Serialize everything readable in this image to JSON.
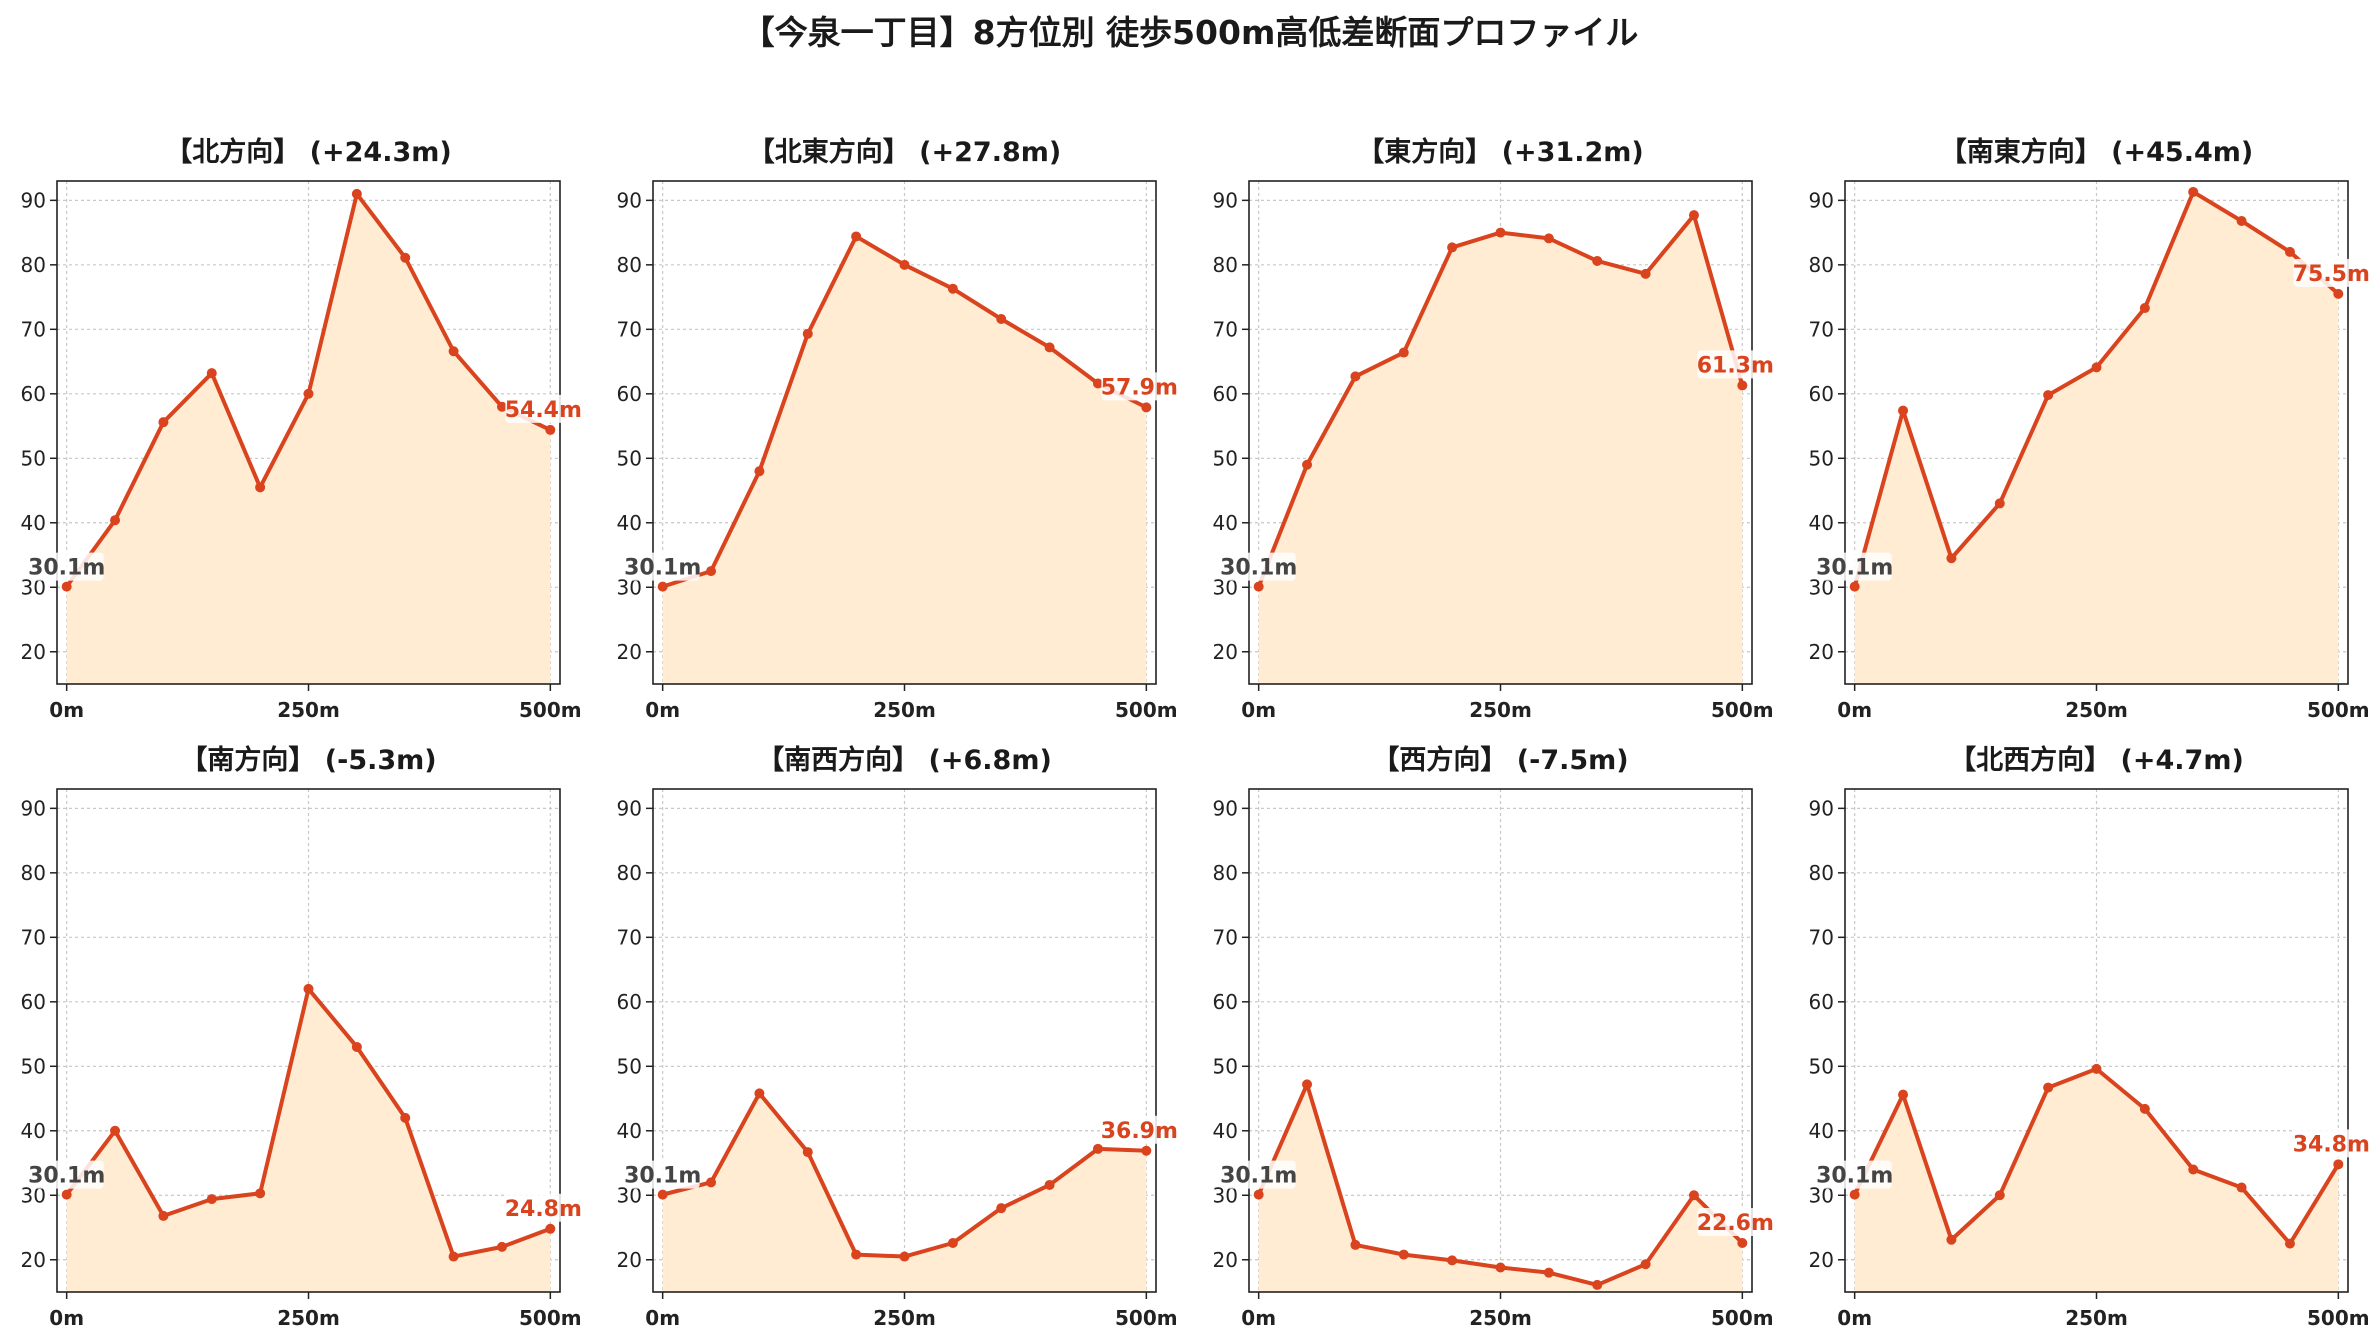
{
  "title": "【今泉一丁目】8方位別 徒歩500m高低差断面プロファイル",
  "colors": {
    "line": "#d9431e",
    "fill": "#ffecd2",
    "grid": "#c8c8c8",
    "axis": "#222222",
    "start_label": "#444444",
    "end_label": "#d9431e"
  },
  "chart_data": [
    {
      "type": "area",
      "title": "【北方向】 (+24.3m)",
      "x": [
        0,
        50,
        100,
        150,
        200,
        250,
        300,
        350,
        400,
        450,
        500
      ],
      "values": [
        30.1,
        40.4,
        55.6,
        63.2,
        45.5,
        60.0,
        91.0,
        81.1,
        66.6,
        58.0,
        54.4
      ],
      "start_label": "30.1m",
      "end_label": "54.4m",
      "x_ticks": [
        0,
        250,
        500
      ],
      "x_tick_labels": [
        "0m",
        "250m",
        "500m"
      ],
      "y_ticks": [
        20,
        30,
        40,
        50,
        60,
        70,
        80,
        90
      ],
      "xlim": [
        -10,
        510
      ],
      "ylim": [
        15,
        93
      ],
      "grid": true
    },
    {
      "type": "area",
      "title": "【北東方向】 (+27.8m)",
      "x": [
        0,
        50,
        100,
        150,
        200,
        250,
        300,
        350,
        400,
        450,
        500
      ],
      "values": [
        30.1,
        32.5,
        48.0,
        69.3,
        84.4,
        80.0,
        76.3,
        71.6,
        67.2,
        61.6,
        57.9
      ],
      "start_label": "30.1m",
      "end_label": "57.9m",
      "x_ticks": [
        0,
        250,
        500
      ],
      "x_tick_labels": [
        "0m",
        "250m",
        "500m"
      ],
      "y_ticks": [
        20,
        30,
        40,
        50,
        60,
        70,
        80,
        90
      ],
      "xlim": [
        -10,
        510
      ],
      "ylim": [
        15,
        93
      ],
      "grid": true
    },
    {
      "type": "area",
      "title": "【東方向】 (+31.2m)",
      "x": [
        0,
        50,
        100,
        150,
        200,
        250,
        300,
        350,
        400,
        450,
        500
      ],
      "values": [
        30.1,
        49.0,
        62.7,
        66.4,
        82.7,
        85.0,
        84.1,
        80.6,
        78.6,
        87.7,
        61.3
      ],
      "start_label": "30.1m",
      "end_label": "61.3m",
      "x_ticks": [
        0,
        250,
        500
      ],
      "x_tick_labels": [
        "0m",
        "250m",
        "500m"
      ],
      "y_ticks": [
        20,
        30,
        40,
        50,
        60,
        70,
        80,
        90
      ],
      "xlim": [
        -10,
        510
      ],
      "ylim": [
        15,
        93
      ],
      "grid": true
    },
    {
      "type": "area",
      "title": "【南東方向】 (+45.4m)",
      "x": [
        0,
        50,
        100,
        150,
        200,
        250,
        300,
        350,
        400,
        450,
        500
      ],
      "values": [
        30.1,
        57.4,
        34.5,
        43.0,
        59.8,
        64.1,
        73.3,
        91.3,
        86.8,
        82.0,
        75.5
      ],
      "start_label": "30.1m",
      "end_label": "75.5m",
      "x_ticks": [
        0,
        250,
        500
      ],
      "x_tick_labels": [
        "0m",
        "250m",
        "500m"
      ],
      "y_ticks": [
        20,
        30,
        40,
        50,
        60,
        70,
        80,
        90
      ],
      "xlim": [
        -10,
        510
      ],
      "ylim": [
        15,
        93
      ],
      "grid": true
    },
    {
      "type": "area",
      "title": "【南方向】 (-5.3m)",
      "x": [
        0,
        50,
        100,
        150,
        200,
        250,
        300,
        350,
        400,
        450,
        500
      ],
      "values": [
        30.1,
        40.0,
        26.8,
        29.4,
        30.3,
        62.0,
        53.0,
        42.0,
        20.5,
        22.0,
        24.8
      ],
      "start_label": "30.1m",
      "end_label": "24.8m",
      "x_ticks": [
        0,
        250,
        500
      ],
      "x_tick_labels": [
        "0m",
        "250m",
        "500m"
      ],
      "y_ticks": [
        20,
        30,
        40,
        50,
        60,
        70,
        80,
        90
      ],
      "xlim": [
        -10,
        510
      ],
      "ylim": [
        15,
        93
      ],
      "grid": true
    },
    {
      "type": "area",
      "title": "【南西方向】 (+6.8m)",
      "x": [
        0,
        50,
        100,
        150,
        200,
        250,
        300,
        350,
        400,
        450,
        500
      ],
      "values": [
        30.1,
        32.0,
        45.8,
        36.7,
        20.8,
        20.5,
        22.6,
        28.0,
        31.6,
        37.2,
        36.9
      ],
      "start_label": "30.1m",
      "end_label": "36.9m",
      "x_ticks": [
        0,
        250,
        500
      ],
      "x_tick_labels": [
        "0m",
        "250m",
        "500m"
      ],
      "y_ticks": [
        20,
        30,
        40,
        50,
        60,
        70,
        80,
        90
      ],
      "xlim": [
        -10,
        510
      ],
      "ylim": [
        15,
        93
      ],
      "grid": true
    },
    {
      "type": "area",
      "title": "【西方向】 (-7.5m)",
      "x": [
        0,
        50,
        100,
        150,
        200,
        250,
        300,
        350,
        400,
        450,
        500
      ],
      "values": [
        30.1,
        47.2,
        22.3,
        20.8,
        19.9,
        18.8,
        18.0,
        16.1,
        19.3,
        30.0,
        22.6
      ],
      "start_label": "30.1m",
      "end_label": "22.6m",
      "x_ticks": [
        0,
        250,
        500
      ],
      "x_tick_labels": [
        "0m",
        "250m",
        "500m"
      ],
      "y_ticks": [
        20,
        30,
        40,
        50,
        60,
        70,
        80,
        90
      ],
      "xlim": [
        -10,
        510
      ],
      "ylim": [
        15,
        93
      ],
      "grid": true
    },
    {
      "type": "area",
      "title": "【北西方向】 (+4.7m)",
      "x": [
        0,
        50,
        100,
        150,
        200,
        250,
        300,
        350,
        400,
        450,
        500
      ],
      "values": [
        30.1,
        45.6,
        23.1,
        30.0,
        46.7,
        49.6,
        43.4,
        34.0,
        31.2,
        22.5,
        34.8
      ],
      "start_label": "30.1m",
      "end_label": "34.8m",
      "x_ticks": [
        0,
        250,
        500
      ],
      "x_tick_labels": [
        "0m",
        "250m",
        "500m"
      ],
      "y_ticks": [
        20,
        30,
        40,
        50,
        60,
        70,
        80,
        90
      ],
      "xlim": [
        -10,
        510
      ],
      "ylim": [
        15,
        93
      ],
      "grid": true
    }
  ]
}
